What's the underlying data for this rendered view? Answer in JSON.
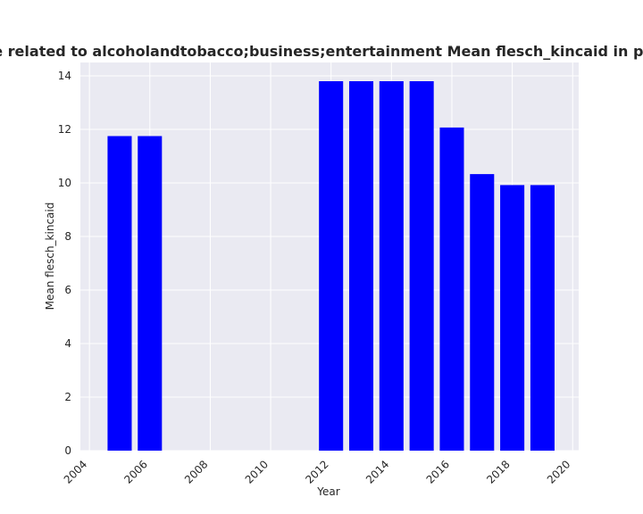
{
  "chart_data": {
    "type": "bar",
    "title": "Categories are related to alcoholandtobacco;business;entertainment Mean flesch_kincaid in privacy policies",
    "xlabel": "Year",
    "ylabel": "Mean flesch_kincaid",
    "x": [
      2005,
      2006,
      2012,
      2013,
      2014,
      2015,
      2016,
      2017,
      2018,
      2019
    ],
    "values": [
      11.75,
      11.75,
      13.8,
      13.8,
      13.8,
      13.8,
      12.07,
      10.33,
      9.92,
      9.92
    ],
    "xlim": [
      2003.7,
      2020.2
    ],
    "ylim": [
      0,
      14.5
    ],
    "xticks": [
      2004,
      2006,
      2008,
      2010,
      2012,
      2014,
      2016,
      2018,
      2020
    ],
    "yticks": [
      0,
      2,
      4,
      6,
      8,
      10,
      12,
      14
    ],
    "bar_color": "#0000ff",
    "plot_background": "#eaeaf2",
    "grid": true
  }
}
